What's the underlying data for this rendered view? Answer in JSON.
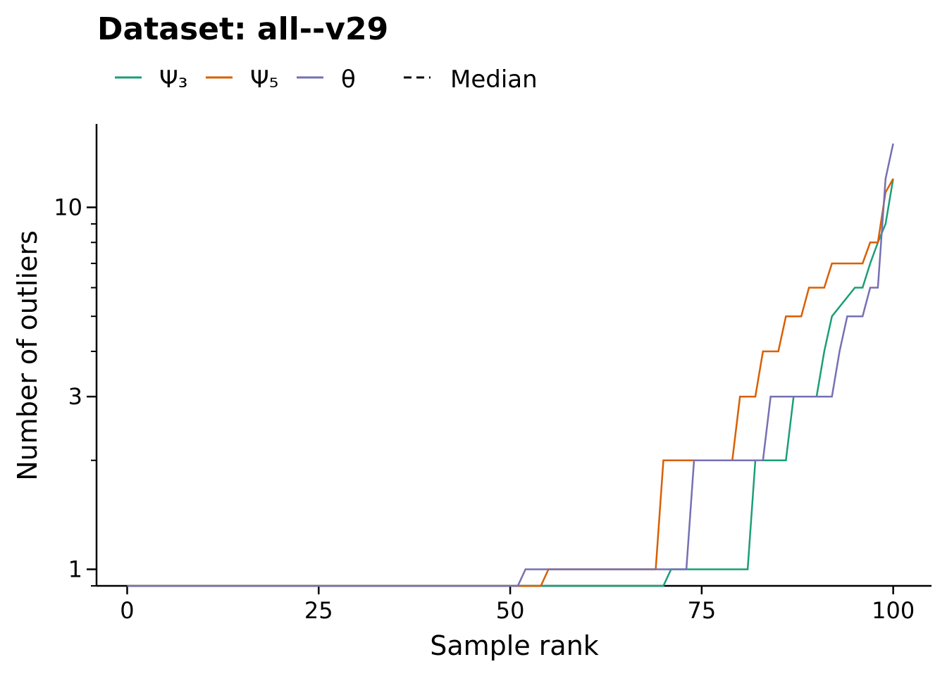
{
  "chart_data": {
    "type": "line",
    "title": "Dataset: all--v29",
    "xlabel": "Sample rank",
    "ylabel": "Number of outliers",
    "xlim": [
      -4,
      105
    ],
    "ylim": [
      0.9,
      17
    ],
    "yscale": "log",
    "grid": false,
    "legend_position": "top-left",
    "x_ticks": [
      0,
      25,
      50,
      75,
      100
    ],
    "x_tick_labels": [
      "0",
      "25",
      "50",
      "75",
      "100"
    ],
    "y_ticks": [
      1,
      3,
      10
    ],
    "y_tick_labels": [
      "1",
      "3",
      "10"
    ],
    "y_minor_ticks": [
      0.9,
      2,
      4,
      5,
      6,
      7,
      8,
      9
    ],
    "series": [
      {
        "name": "Ψ₃",
        "color": "#1b9e77",
        "x": [
          0,
          70,
          71,
          81,
          82,
          86,
          87,
          90,
          91,
          92,
          95,
          96,
          97,
          98,
          99,
          100
        ],
        "y": [
          0.9,
          0.9,
          1,
          1,
          2,
          2,
          3,
          3,
          4,
          5,
          6,
          6,
          7,
          8,
          9,
          12
        ]
      },
      {
        "name": "Ψ₅",
        "color": "#d95f02",
        "x": [
          0,
          54,
          55,
          69,
          70,
          79,
          80,
          82,
          83,
          85,
          86,
          88,
          89,
          91,
          92,
          96,
          97,
          98,
          99,
          100
        ],
        "y": [
          0.9,
          0.9,
          1,
          1,
          2,
          2,
          3,
          3,
          4,
          4,
          5,
          5,
          6,
          6,
          7,
          7,
          8,
          8,
          11,
          12
        ]
      },
      {
        "name": "θ",
        "color": "#7570b3",
        "x": [
          0,
          51,
          52,
          73,
          74,
          83,
          84,
          92,
          93,
          94,
          96,
          97,
          98,
          99,
          100
        ],
        "y": [
          0.9,
          0.9,
          1,
          1,
          2,
          2,
          3,
          3,
          4,
          5,
          5,
          6,
          6,
          12,
          15
        ]
      }
    ],
    "legend": [
      {
        "label": "Ψ₃",
        "color": "#1b9e77",
        "style": "solid"
      },
      {
        "label": "Ψ₅",
        "color": "#d95f02",
        "style": "solid"
      },
      {
        "label": "θ",
        "color": "#7570b3",
        "style": "solid"
      },
      {
        "label": "Median",
        "color": "#000000",
        "style": "dashed"
      }
    ]
  }
}
